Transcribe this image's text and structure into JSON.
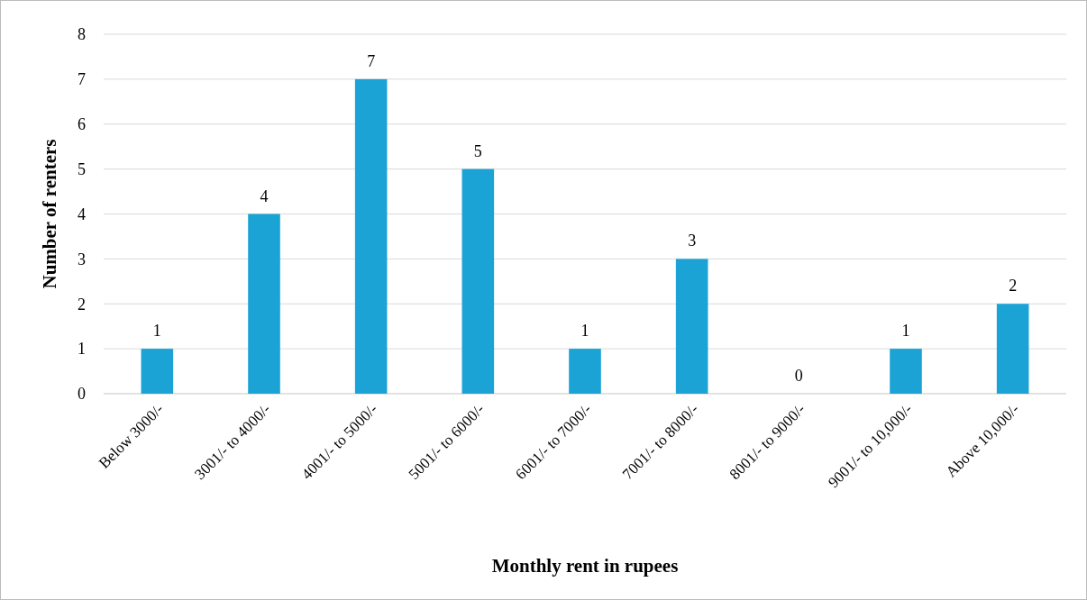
{
  "chart_data": {
    "type": "bar",
    "categories": [
      "Below 3000/-",
      "3001/- to 4000/-",
      "4001/- to 5000/-",
      "5001/- to 6000/-",
      "6001/- to 7000/-",
      "7001/- to 8000/-",
      "8001/- to 9000/-",
      "9001/- to 10,000/-",
      "Above 10,000/-"
    ],
    "values": [
      1,
      4,
      7,
      5,
      1,
      3,
      0,
      1,
      2
    ],
    "color": "#1ba3d6",
    "xlabel": "Monthly rent in rupees",
    "ylabel": "Number of renters",
    "ylim": [
      0,
      8
    ],
    "yticks": [
      0,
      1,
      2,
      3,
      4,
      5,
      6,
      7,
      8
    ],
    "grid": "y",
    "data_labels": true
  }
}
